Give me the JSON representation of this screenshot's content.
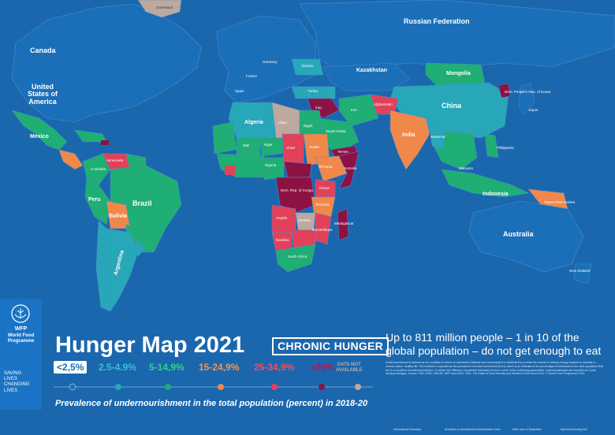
{
  "title": "Hunger Map 2021",
  "subtitle_badge": "CHRONIC HUNGER",
  "headline": "Up to 811 million people – 1 in 10 of the global population – do not get enough to eat",
  "caption": "Prevalence of undernourishment in the total population (percent) in 2018-20",
  "legend": [
    {
      "label": "<2,5%",
      "color": "#1a6fb8"
    },
    {
      "label": "2.5-4.9%",
      "color": "#27a7b8"
    },
    {
      "label": "5-14,9%",
      "color": "#1fae73"
    },
    {
      "label": "15-24,9%",
      "color": "#f0884a"
    },
    {
      "label": "25-34,9%",
      "color": "#e3415a"
    },
    {
      "label": ">35%",
      "color": "#8c1244"
    }
  ],
  "legend_na": {
    "line1": "DATA NOT",
    "line2": "AVAILABLE",
    "color": "#bfa89e"
  },
  "logo": {
    "abbr": "WFP",
    "name_line1": "World Food",
    "name_line2": "Programme",
    "tag1": "SAVING",
    "tag2": "LIVES",
    "tag3": "CHANGING",
    "tag4": "LIVES"
  },
  "notes": "Undernourishment is defined as the condition in which an individual's habitual food consumption is insufficient to provide the amount of dietary energy required to maintain a normal, active, healthy life. The indicator is reported as the prevalence of undernourishment (PoU), which is an estimate of the percentage of individuals in the total population that are in a condition of undernourishment. To reduce the influence of possible estimation errors in some of the underlying parameters, national estimates are reported as 3-year moving averages. Source: FAO, IFAD, UNICEF, WFP and WHO. 2021. The State of Food Security and Nutrition in the World 2021. © World Food Programme 2021",
  "boundaries": [
    "International Boundary",
    "Armistice or International Administrative Lines",
    "Other Line of Separation",
    "Special Boundary line"
  ],
  "map_labels": {
    "canada": "Canada",
    "usa": "United States of America",
    "russia": "Russian Federation",
    "china": "China",
    "brazil": "Brazil",
    "australia": "Australia",
    "india": "India",
    "kazakhstan": "Kazakhstan",
    "mongolia": "Mongolia",
    "algeria": "Algeria",
    "libya": "Libya",
    "egypt": "Egypt",
    "sudan": "Sudan",
    "chad": "Chad",
    "niger": "Niger",
    "mali": "Mali",
    "nigeria": "Nigeria",
    "ethiopia": "Ethiopia",
    "kenya": "Kenya",
    "drc": "Dem. Rep. of Congo",
    "angola": "Angola",
    "zambia": "Zambia",
    "namibia": "Namibia",
    "south_africa": "South Africa",
    "madagascar": "Madagascar",
    "bolivia": "Bolivia",
    "peru": "Peru",
    "argentina": "Argentina",
    "colombia": "Colombia",
    "venezuela": "Venezuela",
    "mexico": "Mexico",
    "indonesia": "Indonesia",
    "papua": "Papua New Guinea",
    "new_zealand": "New Zealand",
    "japan": "Japan",
    "iran": "Iran",
    "afghanistan": "Afghanistan",
    "iraq": "Iraq",
    "turkey": "Turkey",
    "spain": "Spain",
    "france": "France",
    "germany": "Germany",
    "ukraine": "Ukraine",
    "saudi": "Saudi Arabia",
    "tanzania": "Tanzania",
    "mozambique": "Mozambique",
    "philippines": "Philippines",
    "malaysia": "Malaysia",
    "dprk": "Dem. People's Rep. of Korea",
    "greenland": "Greenland",
    "yemen": "Yemen",
    "somalia": "Somalia",
    "myanmar": "Myanmar"
  }
}
